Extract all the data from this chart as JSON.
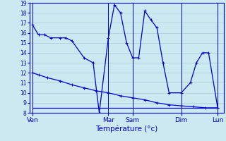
{
  "xlabel": "Température (°c)",
  "background_color": "#cce8f0",
  "grid_color": "#aaccd8",
  "line_color": "#0000cc",
  "ylim": [
    8,
    19
  ],
  "yticks": [
    8,
    9,
    10,
    11,
    12,
    13,
    14,
    15,
    16,
    17,
    18,
    19
  ],
  "xlim": [
    0,
    32
  ],
  "day_labels": [
    "Ven",
    "Mar",
    "Sam",
    "Dim",
    "Lun"
  ],
  "day_positions": [
    0.5,
    13,
    17,
    25,
    31
  ],
  "vline_positions": [
    0.5,
    13,
    17,
    25,
    31
  ],
  "line1_x": [
    0.5,
    1.5,
    2.5,
    3.5,
    5.0,
    6.0,
    7.0,
    9.0,
    10.5,
    11.5,
    13.0,
    14.0,
    15.0,
    16.0,
    17.0,
    18.0,
    19.0,
    20.0,
    21.0,
    22.0,
    23.0,
    25.0,
    26.5,
    27.5,
    28.5,
    29.5,
    31.0
  ],
  "line1_y": [
    16.8,
    15.8,
    15.8,
    15.5,
    15.5,
    15.5,
    15.2,
    13.5,
    13.0,
    8.0,
    15.5,
    18.8,
    18.0,
    15.0,
    13.5,
    13.5,
    18.2,
    17.3,
    16.5,
    13.0,
    10.0,
    10.0,
    11.0,
    13.0,
    14.0,
    14.0,
    8.5
  ],
  "line2_x": [
    0.5,
    1.5,
    3.0,
    5.0,
    7.0,
    9.0,
    11.0,
    13.0,
    15.0,
    17.0,
    19.0,
    21.0,
    23.0,
    25.0,
    27.0,
    29.0,
    31.0
  ],
  "line2_y": [
    12.0,
    11.8,
    11.5,
    11.2,
    10.8,
    10.5,
    10.2,
    10.0,
    9.7,
    9.5,
    9.3,
    9.0,
    8.8,
    8.7,
    8.6,
    8.5,
    8.5
  ],
  "line3_x": [
    0.5,
    31.0
  ],
  "line3_y": [
    8.5,
    8.5
  ]
}
